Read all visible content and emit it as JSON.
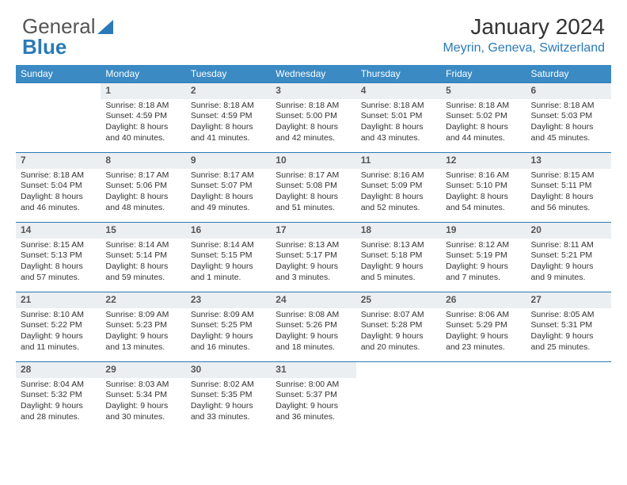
{
  "brand": {
    "part1": "General",
    "part2": "Blue"
  },
  "title": "January 2024",
  "location": "Meyrin, Geneva, Switzerland",
  "colors": {
    "header_bg": "#3b8ac4",
    "accent": "#2a7ab8",
    "daynum_bg": "#eceff1",
    "text": "#333333",
    "bg": "#ffffff"
  },
  "weekdays": [
    "Sunday",
    "Monday",
    "Tuesday",
    "Wednesday",
    "Thursday",
    "Friday",
    "Saturday"
  ],
  "weeks": [
    [
      null,
      {
        "n": "1",
        "sr": "Sunrise: 8:18 AM",
        "ss": "Sunset: 4:59 PM",
        "d1": "Daylight: 8 hours",
        "d2": "and 40 minutes."
      },
      {
        "n": "2",
        "sr": "Sunrise: 8:18 AM",
        "ss": "Sunset: 4:59 PM",
        "d1": "Daylight: 8 hours",
        "d2": "and 41 minutes."
      },
      {
        "n": "3",
        "sr": "Sunrise: 8:18 AM",
        "ss": "Sunset: 5:00 PM",
        "d1": "Daylight: 8 hours",
        "d2": "and 42 minutes."
      },
      {
        "n": "4",
        "sr": "Sunrise: 8:18 AM",
        "ss": "Sunset: 5:01 PM",
        "d1": "Daylight: 8 hours",
        "d2": "and 43 minutes."
      },
      {
        "n": "5",
        "sr": "Sunrise: 8:18 AM",
        "ss": "Sunset: 5:02 PM",
        "d1": "Daylight: 8 hours",
        "d2": "and 44 minutes."
      },
      {
        "n": "6",
        "sr": "Sunrise: 8:18 AM",
        "ss": "Sunset: 5:03 PM",
        "d1": "Daylight: 8 hours",
        "d2": "and 45 minutes."
      }
    ],
    [
      {
        "n": "7",
        "sr": "Sunrise: 8:18 AM",
        "ss": "Sunset: 5:04 PM",
        "d1": "Daylight: 8 hours",
        "d2": "and 46 minutes."
      },
      {
        "n": "8",
        "sr": "Sunrise: 8:17 AM",
        "ss": "Sunset: 5:06 PM",
        "d1": "Daylight: 8 hours",
        "d2": "and 48 minutes."
      },
      {
        "n": "9",
        "sr": "Sunrise: 8:17 AM",
        "ss": "Sunset: 5:07 PM",
        "d1": "Daylight: 8 hours",
        "d2": "and 49 minutes."
      },
      {
        "n": "10",
        "sr": "Sunrise: 8:17 AM",
        "ss": "Sunset: 5:08 PM",
        "d1": "Daylight: 8 hours",
        "d2": "and 51 minutes."
      },
      {
        "n": "11",
        "sr": "Sunrise: 8:16 AM",
        "ss": "Sunset: 5:09 PM",
        "d1": "Daylight: 8 hours",
        "d2": "and 52 minutes."
      },
      {
        "n": "12",
        "sr": "Sunrise: 8:16 AM",
        "ss": "Sunset: 5:10 PM",
        "d1": "Daylight: 8 hours",
        "d2": "and 54 minutes."
      },
      {
        "n": "13",
        "sr": "Sunrise: 8:15 AM",
        "ss": "Sunset: 5:11 PM",
        "d1": "Daylight: 8 hours",
        "d2": "and 56 minutes."
      }
    ],
    [
      {
        "n": "14",
        "sr": "Sunrise: 8:15 AM",
        "ss": "Sunset: 5:13 PM",
        "d1": "Daylight: 8 hours",
        "d2": "and 57 minutes."
      },
      {
        "n": "15",
        "sr": "Sunrise: 8:14 AM",
        "ss": "Sunset: 5:14 PM",
        "d1": "Daylight: 8 hours",
        "d2": "and 59 minutes."
      },
      {
        "n": "16",
        "sr": "Sunrise: 8:14 AM",
        "ss": "Sunset: 5:15 PM",
        "d1": "Daylight: 9 hours",
        "d2": "and 1 minute."
      },
      {
        "n": "17",
        "sr": "Sunrise: 8:13 AM",
        "ss": "Sunset: 5:17 PM",
        "d1": "Daylight: 9 hours",
        "d2": "and 3 minutes."
      },
      {
        "n": "18",
        "sr": "Sunrise: 8:13 AM",
        "ss": "Sunset: 5:18 PM",
        "d1": "Daylight: 9 hours",
        "d2": "and 5 minutes."
      },
      {
        "n": "19",
        "sr": "Sunrise: 8:12 AM",
        "ss": "Sunset: 5:19 PM",
        "d1": "Daylight: 9 hours",
        "d2": "and 7 minutes."
      },
      {
        "n": "20",
        "sr": "Sunrise: 8:11 AM",
        "ss": "Sunset: 5:21 PM",
        "d1": "Daylight: 9 hours",
        "d2": "and 9 minutes."
      }
    ],
    [
      {
        "n": "21",
        "sr": "Sunrise: 8:10 AM",
        "ss": "Sunset: 5:22 PM",
        "d1": "Daylight: 9 hours",
        "d2": "and 11 minutes."
      },
      {
        "n": "22",
        "sr": "Sunrise: 8:09 AM",
        "ss": "Sunset: 5:23 PM",
        "d1": "Daylight: 9 hours",
        "d2": "and 13 minutes."
      },
      {
        "n": "23",
        "sr": "Sunrise: 8:09 AM",
        "ss": "Sunset: 5:25 PM",
        "d1": "Daylight: 9 hours",
        "d2": "and 16 minutes."
      },
      {
        "n": "24",
        "sr": "Sunrise: 8:08 AM",
        "ss": "Sunset: 5:26 PM",
        "d1": "Daylight: 9 hours",
        "d2": "and 18 minutes."
      },
      {
        "n": "25",
        "sr": "Sunrise: 8:07 AM",
        "ss": "Sunset: 5:28 PM",
        "d1": "Daylight: 9 hours",
        "d2": "and 20 minutes."
      },
      {
        "n": "26",
        "sr": "Sunrise: 8:06 AM",
        "ss": "Sunset: 5:29 PM",
        "d1": "Daylight: 9 hours",
        "d2": "and 23 minutes."
      },
      {
        "n": "27",
        "sr": "Sunrise: 8:05 AM",
        "ss": "Sunset: 5:31 PM",
        "d1": "Daylight: 9 hours",
        "d2": "and 25 minutes."
      }
    ],
    [
      {
        "n": "28",
        "sr": "Sunrise: 8:04 AM",
        "ss": "Sunset: 5:32 PM",
        "d1": "Daylight: 9 hours",
        "d2": "and 28 minutes."
      },
      {
        "n": "29",
        "sr": "Sunrise: 8:03 AM",
        "ss": "Sunset: 5:34 PM",
        "d1": "Daylight: 9 hours",
        "d2": "and 30 minutes."
      },
      {
        "n": "30",
        "sr": "Sunrise: 8:02 AM",
        "ss": "Sunset: 5:35 PM",
        "d1": "Daylight: 9 hours",
        "d2": "and 33 minutes."
      },
      {
        "n": "31",
        "sr": "Sunrise: 8:00 AM",
        "ss": "Sunset: 5:37 PM",
        "d1": "Daylight: 9 hours",
        "d2": "and 36 minutes."
      },
      null,
      null,
      null
    ]
  ]
}
